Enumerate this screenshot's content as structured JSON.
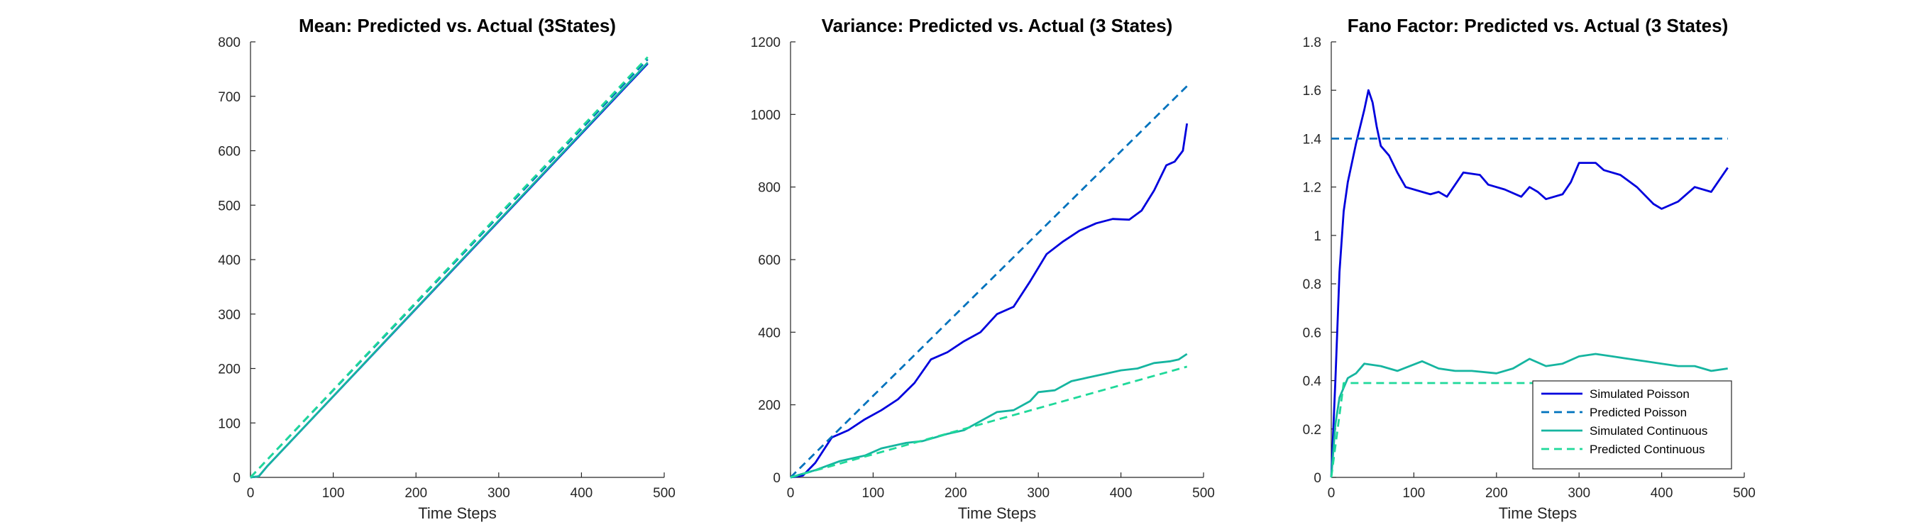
{
  "chart_data": [
    {
      "type": "line",
      "title": "Mean: Predicted vs. Actual (3States)",
      "xlabel": "Time Steps",
      "ylabel": "",
      "xlim": [
        0,
        500
      ],
      "ylim": [
        0,
        800
      ],
      "xticks": [
        0,
        100,
        200,
        300,
        400,
        500
      ],
      "yticks": [
        0,
        100,
        200,
        300,
        400,
        500,
        600,
        700,
        800
      ],
      "grid": false,
      "series": [
        {
          "color": "#0000dd",
          "dash": "solid",
          "points": [
            [
              0,
              0
            ],
            [
              10,
              2
            ],
            [
              20,
              20
            ],
            [
              480,
              760
            ]
          ]
        },
        {
          "color": "#0072bd",
          "dash": "dashed",
          "points": [
            [
              0,
              0
            ],
            [
              480,
              768
            ]
          ]
        },
        {
          "color": "#16b5a0",
          "dash": "solid",
          "points": [
            [
              0,
              0
            ],
            [
              10,
              2
            ],
            [
              20,
              20
            ],
            [
              480,
              762
            ]
          ]
        },
        {
          "color": "#1fd99a",
          "dash": "dashed",
          "points": [
            [
              0,
              0
            ],
            [
              480,
              772
            ]
          ]
        }
      ]
    },
    {
      "type": "line",
      "title": "Variance: Predicted vs. Actual (3 States)",
      "xlabel": "Time Steps",
      "ylabel": "",
      "xlim": [
        0,
        500
      ],
      "ylim": [
        0,
        1200
      ],
      "xticks": [
        0,
        100,
        200,
        300,
        400,
        500
      ],
      "yticks": [
        0,
        200,
        400,
        600,
        800,
        1000,
        1200
      ],
      "grid": false,
      "series": [
        {
          "color": "#0000dd",
          "dash": "solid",
          "points": [
            [
              0,
              0
            ],
            [
              15,
              5
            ],
            [
              30,
              40
            ],
            [
              50,
              110
            ],
            [
              70,
              130
            ],
            [
              90,
              160
            ],
            [
              110,
              185
            ],
            [
              130,
              215
            ],
            [
              150,
              260
            ],
            [
              170,
              325
            ],
            [
              190,
              345
            ],
            [
              210,
              375
            ],
            [
              230,
              400
            ],
            [
              250,
              450
            ],
            [
              270,
              470
            ],
            [
              290,
              540
            ],
            [
              310,
              615
            ],
            [
              330,
              650
            ],
            [
              350,
              680
            ],
            [
              370,
              700
            ],
            [
              390,
              712
            ],
            [
              410,
              710
            ],
            [
              425,
              735
            ],
            [
              440,
              790
            ],
            [
              455,
              860
            ],
            [
              465,
              870
            ],
            [
              475,
              900
            ],
            [
              480,
              975
            ]
          ]
        },
        {
          "color": "#0072bd",
          "dash": "dashed",
          "points": [
            [
              0,
              0
            ],
            [
              480,
              1078
            ]
          ]
        },
        {
          "color": "#16b5a0",
          "dash": "solid",
          "points": [
            [
              0,
              0
            ],
            [
              30,
              20
            ],
            [
              60,
              45
            ],
            [
              90,
              60
            ],
            [
              110,
              80
            ],
            [
              140,
              95
            ],
            [
              160,
              100
            ],
            [
              190,
              120
            ],
            [
              210,
              130
            ],
            [
              230,
              155
            ],
            [
              250,
              180
            ],
            [
              270,
              185
            ],
            [
              290,
              210
            ],
            [
              300,
              235
            ],
            [
              320,
              240
            ],
            [
              340,
              265
            ],
            [
              360,
              275
            ],
            [
              380,
              285
            ],
            [
              400,
              295
            ],
            [
              420,
              300
            ],
            [
              440,
              315
            ],
            [
              460,
              320
            ],
            [
              470,
              325
            ],
            [
              480,
              340
            ]
          ]
        },
        {
          "color": "#1fd99a",
          "dash": "dashed",
          "points": [
            [
              0,
              0
            ],
            [
              480,
              305
            ]
          ]
        }
      ]
    },
    {
      "type": "line",
      "title": "Fano Factor: Predicted vs. Actual (3 States)",
      "xlabel": "Time Steps",
      "ylabel": "",
      "xlim": [
        0,
        500
      ],
      "ylim": [
        0,
        1.8
      ],
      "xticks": [
        0,
        100,
        200,
        300,
        400,
        500
      ],
      "yticks": [
        0,
        0.2,
        0.4,
        0.6,
        0.8,
        1,
        1.2,
        1.4,
        1.6,
        1.8
      ],
      "grid": false,
      "legend": {
        "location": "bottom-right",
        "entries": [
          "Simulated Poisson",
          "Predicted Poisson",
          "Simulated Continuous",
          "Predicted Continuous"
        ]
      },
      "series": [
        {
          "name": "Simulated Poisson",
          "color": "#0000dd",
          "dash": "solid",
          "points": [
            [
              0,
              0
            ],
            [
              5,
              0.4
            ],
            [
              10,
              0.85
            ],
            [
              15,
              1.1
            ],
            [
              20,
              1.22
            ],
            [
              30,
              1.38
            ],
            [
              40,
              1.52
            ],
            [
              45,
              1.6
            ],
            [
              50,
              1.55
            ],
            [
              55,
              1.45
            ],
            [
              60,
              1.37
            ],
            [
              70,
              1.33
            ],
            [
              80,
              1.26
            ],
            [
              90,
              1.2
            ],
            [
              110,
              1.18
            ],
            [
              120,
              1.17
            ],
            [
              130,
              1.18
            ],
            [
              140,
              1.16
            ],
            [
              160,
              1.26
            ],
            [
              180,
              1.25
            ],
            [
              190,
              1.21
            ],
            [
              210,
              1.19
            ],
            [
              230,
              1.16
            ],
            [
              240,
              1.2
            ],
            [
              250,
              1.18
            ],
            [
              260,
              1.15
            ],
            [
              280,
              1.17
            ],
            [
              290,
              1.22
            ],
            [
              300,
              1.3
            ],
            [
              320,
              1.3
            ],
            [
              330,
              1.27
            ],
            [
              350,
              1.25
            ],
            [
              370,
              1.2
            ],
            [
              390,
              1.13
            ],
            [
              400,
              1.11
            ],
            [
              420,
              1.14
            ],
            [
              440,
              1.2
            ],
            [
              460,
              1.18
            ],
            [
              480,
              1.28
            ]
          ]
        },
        {
          "name": "Predicted Poisson",
          "color": "#0072bd",
          "dash": "dashed",
          "points": [
            [
              0,
              1.4
            ],
            [
              480,
              1.4
            ]
          ]
        },
        {
          "name": "Simulated Continuous",
          "color": "#16b5a0",
          "dash": "solid",
          "points": [
            [
              0,
              0
            ],
            [
              5,
              0.22
            ],
            [
              10,
              0.33
            ],
            [
              20,
              0.41
            ],
            [
              30,
              0.43
            ],
            [
              40,
              0.47
            ],
            [
              60,
              0.46
            ],
            [
              80,
              0.44
            ],
            [
              110,
              0.48
            ],
            [
              130,
              0.45
            ],
            [
              150,
              0.44
            ],
            [
              170,
              0.44
            ],
            [
              200,
              0.43
            ],
            [
              220,
              0.45
            ],
            [
              240,
              0.49
            ],
            [
              260,
              0.46
            ],
            [
              280,
              0.47
            ],
            [
              300,
              0.5
            ],
            [
              320,
              0.51
            ],
            [
              340,
              0.5
            ],
            [
              360,
              0.49
            ],
            [
              380,
              0.48
            ],
            [
              400,
              0.47
            ],
            [
              420,
              0.46
            ],
            [
              440,
              0.46
            ],
            [
              460,
              0.44
            ],
            [
              480,
              0.45
            ]
          ]
        },
        {
          "name": "Predicted Continuous",
          "color": "#1fd99a",
          "dash": "dashed",
          "points": [
            [
              0,
              0
            ],
            [
              15,
              0.39
            ],
            [
              480,
              0.39
            ]
          ]
        }
      ]
    }
  ]
}
